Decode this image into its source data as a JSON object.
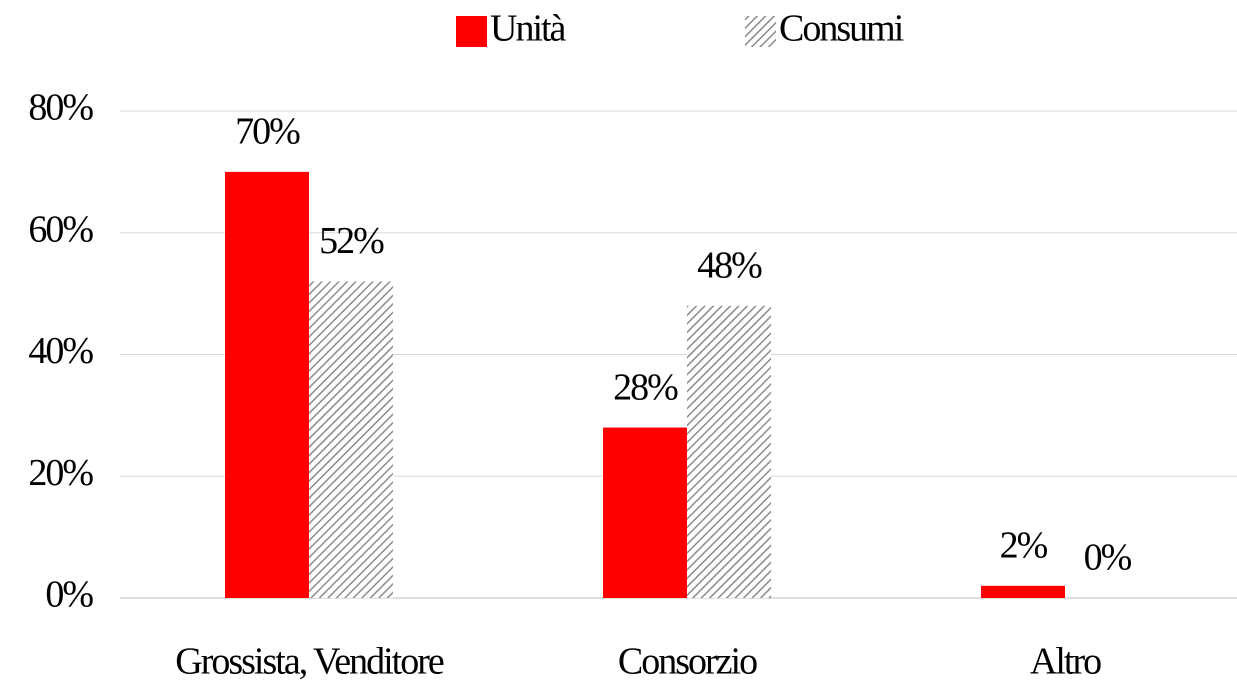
{
  "chart_data": {
    "type": "bar",
    "categories": [
      "Grossista, Venditore",
      "Consorzio",
      "Altro"
    ],
    "series": [
      {
        "name": "Unità",
        "color": "#ff0000",
        "values": [
          70,
          28,
          2
        ],
        "value_labels": [
          "70%",
          "28%",
          "2%"
        ]
      },
      {
        "name": "Consumi",
        "color": "#8c8c8c",
        "hatch": true,
        "values": [
          52,
          48,
          0
        ],
        "value_labels": [
          "52%",
          "48%",
          "0%"
        ]
      }
    ],
    "ylim": [
      0,
      80
    ],
    "yticks": [
      {
        "value": 0,
        "label": "0%"
      },
      {
        "value": 20,
        "label": "20%"
      },
      {
        "value": 40,
        "label": "40%"
      },
      {
        "value": 60,
        "label": "60%"
      },
      {
        "value": 80,
        "label": "80%"
      }
    ],
    "grid": true,
    "legend": "top"
  }
}
